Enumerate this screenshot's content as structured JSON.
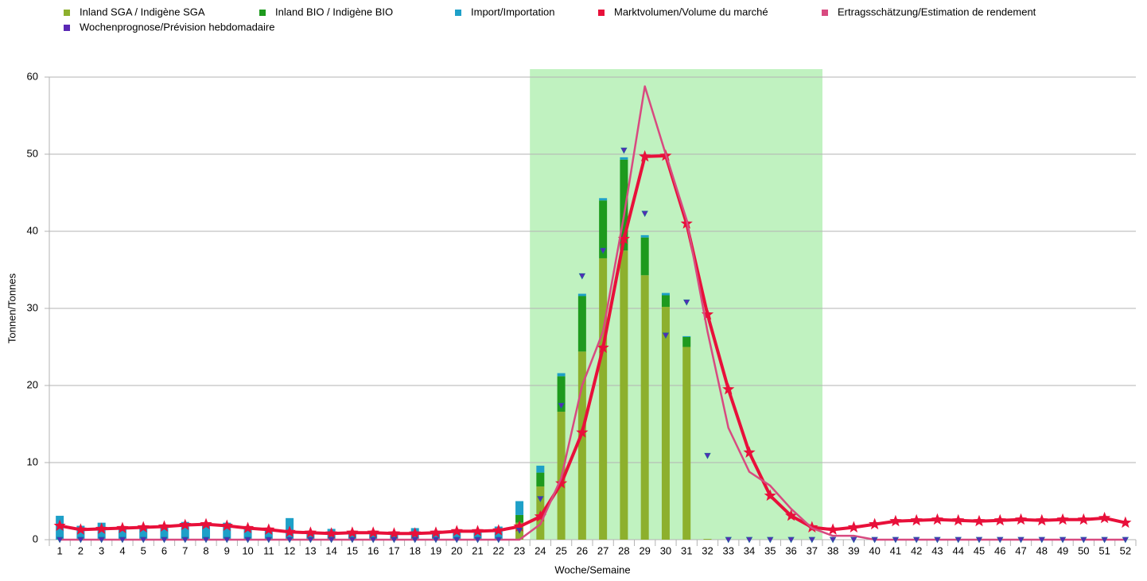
{
  "chart_data": {
    "type": "combo",
    "x_label": "Woche/Semaine",
    "y_label": "Tonnen/Tonnes",
    "categories": [
      "1",
      "2",
      "3",
      "4",
      "5",
      "6",
      "7",
      "8",
      "9",
      "10",
      "11",
      "12",
      "13",
      "14",
      "15",
      "16",
      "17",
      "18",
      "19",
      "20",
      "21",
      "22",
      "23",
      "24",
      "25",
      "26",
      "27",
      "28",
      "29",
      "30",
      "31",
      "32",
      "33",
      "34",
      "35",
      "36",
      "37",
      "38",
      "39",
      "40",
      "41",
      "42",
      "43",
      "44",
      "45",
      "46",
      "47",
      "48",
      "49",
      "50",
      "51",
      "52"
    ],
    "highlight": {
      "from": "24",
      "to": "37",
      "color": "#c0f2c0"
    },
    "ylim": [
      0,
      60
    ],
    "yticks": [
      0,
      10,
      20,
      30,
      40,
      50,
      60
    ],
    "grid": true,
    "series": [
      {
        "name": "Inland SGA / Indigène SGA",
        "type": "bar",
        "color": "#8db02d",
        "values": [
          0,
          0,
          0,
          0,
          0,
          0,
          0,
          0,
          0,
          0,
          0,
          0,
          0,
          0,
          0,
          0,
          0,
          0,
          0,
          0,
          0,
          0,
          2.2,
          6.9,
          16.6,
          24.4,
          36.5,
          37.5,
          34.3,
          30.2,
          25,
          0.1,
          0,
          0,
          0,
          0,
          0,
          0,
          0,
          0,
          0,
          0,
          0,
          0,
          0,
          0,
          0,
          0,
          0,
          0,
          0,
          0
        ]
      },
      {
        "name": "Inland BIO / Indigène BIO",
        "type": "bar",
        "color": "#1e9a1e",
        "values": [
          0,
          0,
          0,
          0,
          0,
          0,
          0,
          0,
          0,
          0,
          0,
          0,
          0,
          0,
          0,
          0,
          0,
          0,
          0,
          0,
          0,
          0,
          1,
          1.8,
          4.6,
          7.2,
          7.5,
          11.8,
          4.9,
          1.5,
          1.3,
          0,
          0,
          0,
          0,
          0,
          0,
          0,
          0,
          0,
          0,
          0,
          0,
          0,
          0,
          0,
          0,
          0,
          0,
          0,
          0,
          0
        ]
      },
      {
        "name": "Import/Importation",
        "type": "bar",
        "color": "#1ea0c8",
        "values": [
          3.1,
          1.8,
          2.2,
          1.6,
          1.5,
          1.8,
          2.3,
          2,
          2.2,
          1.5,
          1.3,
          2.8,
          0.9,
          1.4,
          1,
          0.9,
          0.9,
          1.5,
          1,
          1.2,
          1.3,
          1.7,
          1.8,
          0.9,
          0.4,
          0.3,
          0.3,
          0.3,
          0.3,
          0.3,
          0.1,
          0,
          0,
          0,
          0,
          0,
          0,
          0,
          0,
          0,
          0,
          0,
          0,
          0,
          0,
          0,
          0,
          0,
          0,
          0,
          0,
          0
        ]
      },
      {
        "name": "Marktvolumen/Volume du marché",
        "type": "line",
        "marker": "star",
        "color": "#e8103a",
        "values": [
          1.8,
          1.3,
          1.4,
          1.5,
          1.6,
          1.7,
          1.9,
          2,
          1.8,
          1.5,
          1.3,
          1,
          0.9,
          0.8,
          0.9,
          0.9,
          0.8,
          0.8,
          0.9,
          1.1,
          1.1,
          1.2,
          1.7,
          3,
          7.3,
          13.9,
          24.9,
          39,
          49.7,
          49.8,
          41,
          29.2,
          19.5,
          11.3,
          5.7,
          3.1,
          1.6,
          1.3,
          1.6,
          2,
          2.4,
          2.5,
          2.6,
          2.5,
          2.4,
          2.5,
          2.6,
          2.5,
          2.6,
          2.6,
          2.8,
          2.2
        ]
      },
      {
        "name": "Ertragsschätzung/Estimation de rendement",
        "type": "line",
        "color": "#d84a80",
        "values": [
          0,
          0,
          0,
          0,
          0,
          0,
          0,
          0,
          0,
          0,
          0,
          0,
          0,
          0,
          0,
          0,
          0,
          0,
          0,
          0,
          0,
          0,
          0,
          2,
          8,
          20,
          27,
          42,
          58.8,
          50,
          41.5,
          27,
          14.5,
          8.8,
          7,
          4,
          1.5,
          0.5,
          0.5,
          0,
          0,
          0,
          0,
          0,
          0,
          0,
          0,
          0,
          0,
          0,
          0,
          0
        ]
      },
      {
        "name": "Wochenprognose/Prévision hebdomadaire",
        "type": "scatter",
        "marker": "triangle",
        "color": "#5a28b4",
        "values": [
          0,
          0,
          0,
          0,
          0,
          0,
          0,
          0,
          0,
          0,
          0,
          0,
          0,
          0,
          0,
          0,
          0,
          0,
          0,
          0,
          0,
          0,
          1.2,
          5.3,
          17.4,
          34.2,
          37.5,
          50.5,
          42.3,
          26.5,
          30.8,
          10.9,
          0,
          0,
          0,
          0,
          0,
          0,
          0,
          0,
          0,
          0,
          0,
          0,
          0,
          0,
          0,
          0,
          0,
          0,
          0,
          0
        ]
      }
    ]
  }
}
